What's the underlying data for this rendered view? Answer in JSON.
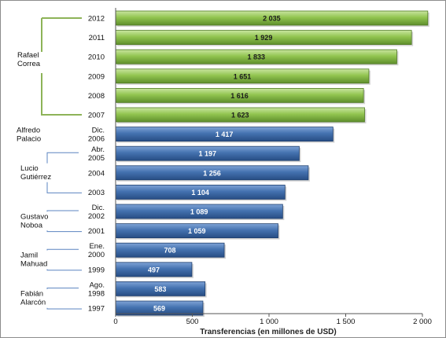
{
  "chart_data": {
    "type": "bar",
    "orientation": "horizontal",
    "xlabel": "Transferencias  (en millones de USD)",
    "ylabel": "",
    "title": "",
    "xlim": [
      0,
      2000
    ],
    "x_ticks": [
      0,
      500,
      1000,
      1500,
      2000
    ],
    "x_tick_labels": [
      "0",
      "500",
      "1 000",
      "1 500",
      "2 000"
    ],
    "grid": false,
    "categories": [
      {
        "label": "2012",
        "value": 2035,
        "value_label": "2 035",
        "group": "green"
      },
      {
        "label": "2011",
        "value": 1929,
        "value_label": "1 929",
        "group": "green"
      },
      {
        "label": "2010",
        "value": 1833,
        "value_label": "1 833",
        "group": "green"
      },
      {
        "label": "2009",
        "value": 1651,
        "value_label": "1 651",
        "group": "green"
      },
      {
        "label": "2008",
        "value": 1616,
        "value_label": "1 616",
        "group": "green"
      },
      {
        "label": "2007",
        "value": 1623,
        "value_label": "1 623",
        "group": "green"
      },
      {
        "label": "Dic.\n2006",
        "value": 1417,
        "value_label": "1 417",
        "group": "blue"
      },
      {
        "label": "Abr.\n2005",
        "value": 1197,
        "value_label": "1 197",
        "group": "blue"
      },
      {
        "label": "2004",
        "value": 1256,
        "value_label": "1 256",
        "group": "blue"
      },
      {
        "label": "2003",
        "value": 1104,
        "value_label": "1 104",
        "group": "blue"
      },
      {
        "label": "Dic.\n2002",
        "value": 1089,
        "value_label": "1 089",
        "group": "blue"
      },
      {
        "label": "2001",
        "value": 1059,
        "value_label": "1 059",
        "group": "blue"
      },
      {
        "label": "Ene.\n2000",
        "value": 708,
        "value_label": "708",
        "group": "blue"
      },
      {
        "label": "1999",
        "value": 497,
        "value_label": "497",
        "group": "blue"
      },
      {
        "label": "Ago.\n1998",
        "value": 583,
        "value_label": "583",
        "group": "blue"
      },
      {
        "label": "1997",
        "value": 569,
        "value_label": "569",
        "group": "blue"
      }
    ],
    "annotations": [
      {
        "text": "Rafael\nCorrea",
        "from": 0,
        "to": 5
      },
      {
        "text": "Alfredo\nPalacio",
        "from": 6,
        "to": 6
      },
      {
        "text": "Lucio\nGutiérrez",
        "from": 7,
        "to": 9
      },
      {
        "text": "Gustavo\nNoboa",
        "from": 10,
        "to": 11
      },
      {
        "text": "Jamil\nMahuad",
        "from": 12,
        "to": 13
      },
      {
        "text": "Fabián\nAlarcón",
        "from": 14,
        "to": 15
      }
    ],
    "colors": {
      "green": "#92c550",
      "green_dark": "#4f7a22",
      "blue": "#4472b0",
      "blue_dark": "#1f3f6e",
      "bracket_green": "#8db358",
      "bracket_blue": "#5b84c0"
    }
  }
}
